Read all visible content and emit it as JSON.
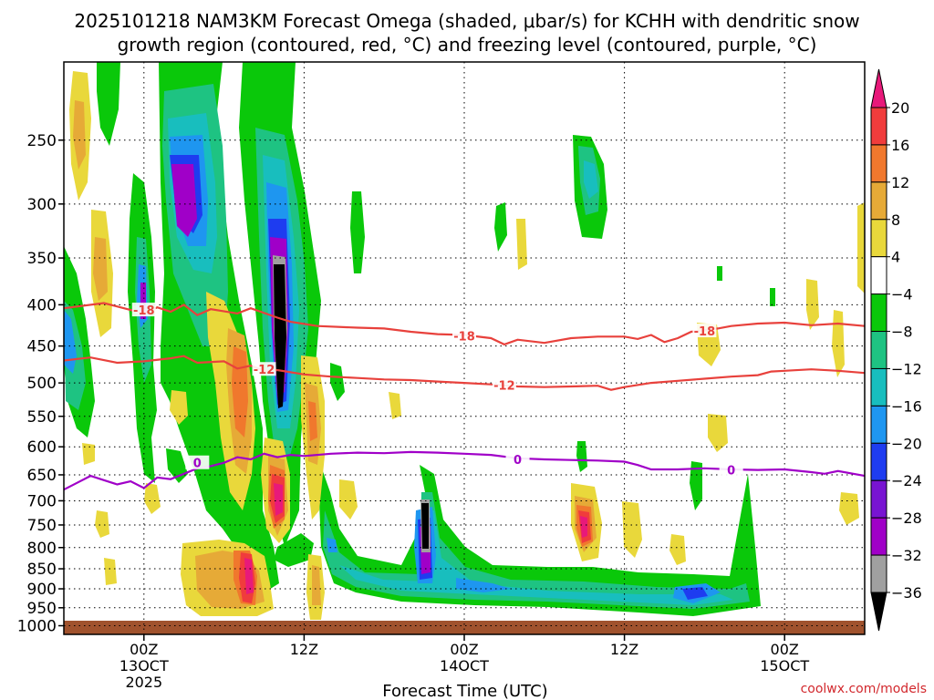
{
  "chart_data": {
    "type": "heatmap",
    "title_line1": "2025101218 NAM3KM Forecast Omega (shaded, μbar/s) for KCHH with dendritic snow",
    "title_line2": "growth region (contoured, red, °C) and freezing level (contoured, purple, °C)",
    "xlabel": "Forecast Time (UTC)",
    "ylabel": "",
    "credit": "coolwx.com/models",
    "x_axis": {
      "range_hours": [
        -6,
        54
      ],
      "ticks": [
        {
          "hour": 0,
          "lines": [
            "00Z",
            "13OCT",
            "2025"
          ]
        },
        {
          "hour": 12,
          "lines": [
            "12Z"
          ]
        },
        {
          "hour": 24,
          "lines": [
            "00Z",
            "14OCT"
          ]
        },
        {
          "hour": 36,
          "lines": [
            "12Z"
          ]
        },
        {
          "hour": 48,
          "lines": [
            "00Z",
            "15OCT"
          ]
        }
      ]
    },
    "y_axis": {
      "range_hPa": [
        200,
        1025
      ],
      "ticks": [
        250,
        300,
        350,
        400,
        450,
        500,
        550,
        600,
        650,
        700,
        750,
        800,
        850,
        900,
        950,
        1000
      ]
    },
    "colorbar": {
      "labels": [
        "20",
        "16",
        "12",
        "8",
        "4",
        "−4",
        "−8",
        "−12",
        "−16",
        "−20",
        "−24",
        "−28",
        "−32",
        "−36"
      ],
      "bins": [
        {
          "range": "> 20",
          "color": "#e8197a"
        },
        {
          "range": "16 to 20",
          "color": "#f03c3c"
        },
        {
          "range": "12 to 16",
          "color": "#f0782d"
        },
        {
          "range": "8 to 12",
          "color": "#e6aa37"
        },
        {
          "range": "4 to 8",
          "color": "#e9d83b"
        },
        {
          "range": "-4 to 4",
          "color": "#ffffff"
        },
        {
          "range": "-8 to -4",
          "color": "#0ac80a"
        },
        {
          "range": "-12 to -8",
          "color": "#1ec382"
        },
        {
          "range": "-16 to -12",
          "color": "#18bebe"
        },
        {
          "range": "-20 to -16",
          "color": "#1e96f0"
        },
        {
          "range": "-24 to -20",
          "color": "#1e3cf0"
        },
        {
          "range": "-28 to -24",
          "color": "#7814d2"
        },
        {
          "range": "-32 to -28",
          "color": "#a000c8"
        },
        {
          "range": "-36 to -32",
          "color": "#a0a0a0"
        },
        {
          "range": "< -36",
          "color": "#000000"
        }
      ]
    },
    "contours": [
      {
        "label": "-18",
        "color": "#e8413c",
        "points": [
          [
            -6,
            404
          ],
          [
            -3,
            398
          ],
          [
            -1,
            406
          ],
          [
            0,
            410
          ],
          [
            1,
            403
          ],
          [
            2,
            408
          ],
          [
            3,
            400
          ],
          [
            4,
            412
          ],
          [
            5,
            405
          ],
          [
            7,
            410
          ],
          [
            8,
            404
          ],
          [
            10,
            415
          ],
          [
            11,
            420
          ],
          [
            13,
            425
          ],
          [
            16,
            427
          ],
          [
            18,
            428
          ],
          [
            20,
            432
          ],
          [
            22,
            435
          ],
          [
            24,
            436
          ],
          [
            26,
            440
          ],
          [
            27,
            448
          ],
          [
            28,
            442
          ],
          [
            30,
            446
          ],
          [
            32,
            440
          ],
          [
            34,
            438
          ],
          [
            36,
            438
          ],
          [
            37,
            441
          ],
          [
            38,
            436
          ],
          [
            39,
            445
          ],
          [
            40,
            440
          ],
          [
            41,
            432
          ],
          [
            43,
            428
          ],
          [
            44,
            425
          ],
          [
            46,
            422
          ],
          [
            48,
            421
          ],
          [
            50,
            424
          ],
          [
            52,
            422
          ],
          [
            54,
            425
          ]
        ],
        "label_at": [
          [
            0,
            406
          ],
          [
            24,
            437
          ],
          [
            42,
            431
          ]
        ]
      },
      {
        "label": "-12",
        "color": "#e8413c",
        "points": [
          [
            -6,
            469
          ],
          [
            -4,
            465
          ],
          [
            -2,
            472
          ],
          [
            0,
            470
          ],
          [
            2,
            466
          ],
          [
            3,
            463
          ],
          [
            4,
            472
          ],
          [
            6,
            470
          ],
          [
            7,
            480
          ],
          [
            8,
            476
          ],
          [
            9,
            483
          ],
          [
            10,
            482
          ],
          [
            12,
            488
          ],
          [
            14,
            491
          ],
          [
            16,
            493
          ],
          [
            18,
            495
          ],
          [
            20,
            496
          ],
          [
            22,
            498
          ],
          [
            24,
            500
          ],
          [
            26,
            502
          ],
          [
            28,
            505
          ],
          [
            30,
            506
          ],
          [
            32,
            505
          ],
          [
            34,
            504
          ],
          [
            35,
            510
          ],
          [
            36,
            506
          ],
          [
            38,
            500
          ],
          [
            40,
            497
          ],
          [
            42,
            494
          ],
          [
            44,
            491
          ],
          [
            46,
            489
          ],
          [
            47,
            484
          ],
          [
            48,
            483
          ],
          [
            50,
            481
          ],
          [
            52,
            483
          ],
          [
            54,
            486
          ]
        ],
        "label_at": [
          [
            9,
            481
          ],
          [
            27,
            503
          ]
        ]
      },
      {
        "label": "0",
        "color": "#a000c8",
        "points": [
          [
            -6,
            678
          ],
          [
            -5,
            665
          ],
          [
            -4,
            652
          ],
          [
            -3,
            660
          ],
          [
            -2,
            668
          ],
          [
            -1,
            662
          ],
          [
            0,
            675
          ],
          [
            1,
            655
          ],
          [
            2,
            658
          ],
          [
            3,
            648
          ],
          [
            4,
            638
          ],
          [
            5,
            634
          ],
          [
            6,
            628
          ],
          [
            7,
            618
          ],
          [
            8,
            622
          ],
          [
            9,
            612
          ],
          [
            10,
            618
          ],
          [
            11,
            614
          ],
          [
            12,
            616
          ],
          [
            14,
            612
          ],
          [
            16,
            610
          ],
          [
            18,
            611
          ],
          [
            20,
            609
          ],
          [
            22,
            610
          ],
          [
            24,
            612
          ],
          [
            26,
            614
          ],
          [
            28,
            620
          ],
          [
            30,
            622
          ],
          [
            32,
            623
          ],
          [
            34,
            624
          ],
          [
            36,
            626
          ],
          [
            37,
            632
          ],
          [
            38,
            640
          ],
          [
            40,
            640
          ],
          [
            42,
            638
          ],
          [
            44,
            640
          ],
          [
            46,
            641
          ],
          [
            48,
            640
          ],
          [
            50,
            645
          ],
          [
            51,
            648
          ],
          [
            52,
            643
          ],
          [
            54,
            652
          ]
        ],
        "label_at": [
          [
            4,
            628
          ],
          [
            28,
            622
          ],
          [
            44,
            641
          ]
        ]
      }
    ]
  }
}
